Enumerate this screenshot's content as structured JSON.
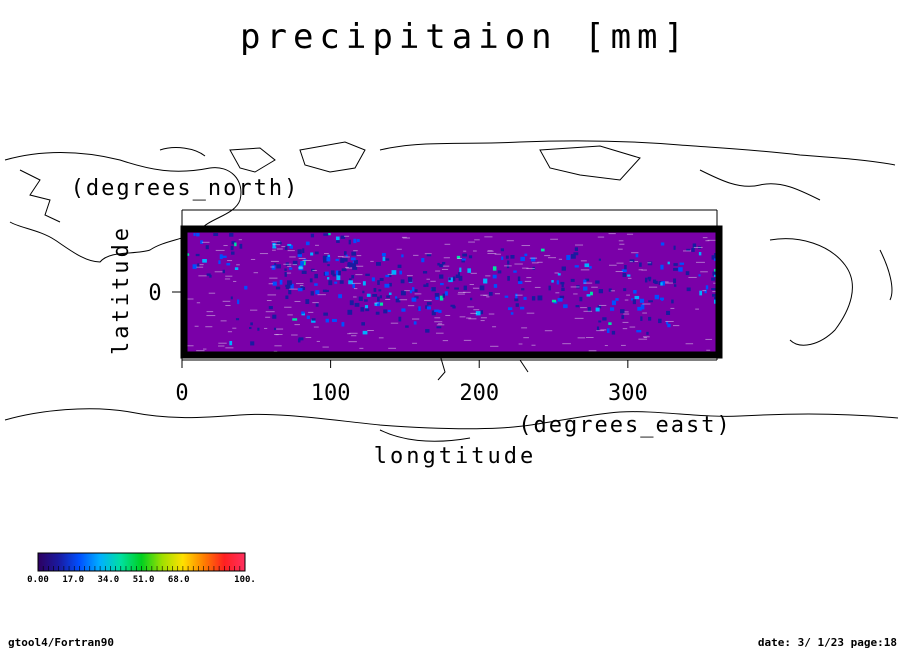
{
  "chart_data": {
    "type": "heatmap",
    "title": "precipitaion [mm]",
    "xlabel": "longtitude",
    "xunit": "(degrees_east)",
    "ylabel": "latitude",
    "yunit": "(degrees_north)",
    "xlim": [
      0,
      360
    ],
    "ylim": [
      -30,
      30
    ],
    "x_ticks": [
      "0",
      "100",
      "200",
      "300"
    ],
    "y_ticks": [
      "0"
    ],
    "value_range": [
      0,
      100
    ],
    "colorbar_labels": [
      "0.00",
      "17.0",
      "34.0",
      "51.0",
      "68.0",
      "100."
    ],
    "colormap": [
      "#2d0060",
      "#1a1aa0",
      "#0050ff",
      "#00b0ff",
      "#00e0a0",
      "#00d020",
      "#a0e000",
      "#ffe000",
      "#ff8000",
      "#ff2020",
      "#ff3060"
    ],
    "background_color": "#7a00a8",
    "description_in_figure": "mostly low values with scattered blue maxima along the equatorial band"
  },
  "footer": {
    "left": "gtool4/Fortran90",
    "right": "date: 3/ 1/23 page:18"
  }
}
